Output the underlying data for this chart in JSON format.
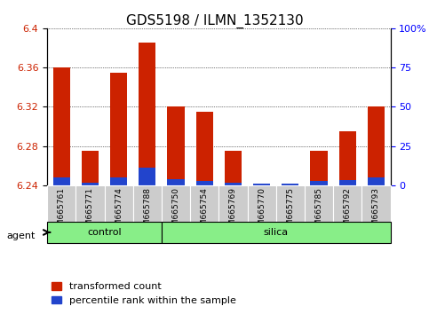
{
  "title": "GDS5198 / ILMN_1352130",
  "samples": [
    "GSM665761",
    "GSM665771",
    "GSM665774",
    "GSM665788",
    "GSM665750",
    "GSM665754",
    "GSM665769",
    "GSM665770",
    "GSM665775",
    "GSM665785",
    "GSM665792",
    "GSM665793"
  ],
  "red_values": [
    6.36,
    6.275,
    6.355,
    6.385,
    6.32,
    6.315,
    6.275,
    6.242,
    6.242,
    6.275,
    6.295,
    6.32
  ],
  "blue_values": [
    6.248,
    6.243,
    6.248,
    6.258,
    6.246,
    6.244,
    6.243,
    6.242,
    6.242,
    6.244,
    6.245,
    6.248
  ],
  "ylim_left": [
    6.24,
    6.4
  ],
  "yticks_left": [
    6.24,
    6.28,
    6.32,
    6.36,
    6.4
  ],
  "yticks_right": [
    0,
    25,
    50,
    75,
    100
  ],
  "ytick_labels_right": [
    "0",
    "25",
    "50",
    "75",
    "100%"
  ],
  "bar_width": 0.6,
  "base": 6.24,
  "red_color": "#cc2200",
  "blue_color": "#2244cc",
  "green_bg": "#88ee88",
  "gray_bg": "#cccccc",
  "legend_red": "transformed count",
  "legend_blue": "percentile rank within the sample",
  "group_label_control": "control",
  "group_label_silica": "silica",
  "agent_label": "agent",
  "title_fontsize": 11,
  "tick_fontsize": 8,
  "legend_fontsize": 8
}
